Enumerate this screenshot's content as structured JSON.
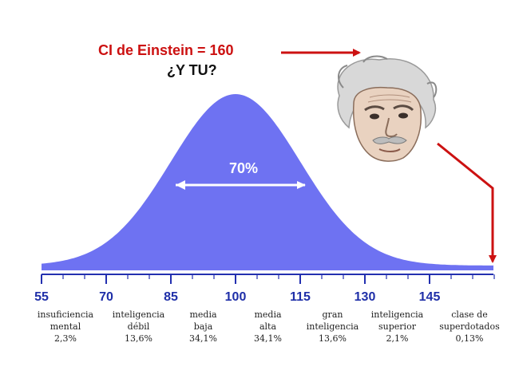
{
  "headline": "CI de Einstein = 160",
  "question": "¿Y TU?",
  "colors": {
    "curve": "#6e72f2",
    "axis": "#2330b0",
    "arrow": "#cc1111",
    "headline": "#cc1111"
  },
  "portrait_icon": "einstein-face",
  "chart_data": {
    "type": "area",
    "distribution": "normal",
    "mean": 100,
    "sd": 15,
    "xlim": [
      55,
      160
    ],
    "ticks": [
      "55",
      "70",
      "85",
      "100",
      "115",
      "130",
      "145"
    ],
    "tick_values": [
      55,
      70,
      85,
      100,
      115,
      130,
      145
    ],
    "center_annotation": "70%",
    "center_span": [
      85,
      115
    ],
    "highlight_value": 160,
    "categories": [
      {
        "lines": [
          "insuficiencia",
          "mental"
        ],
        "percent": "2,3%"
      },
      {
        "lines": [
          "inteligencia",
          "débil"
        ],
        "percent": "13,6%"
      },
      {
        "lines": [
          "media",
          "baja"
        ],
        "percent": "34,1%"
      },
      {
        "lines": [
          "media",
          "alta"
        ],
        "percent": "34,1%"
      },
      {
        "lines": [
          "gran",
          "inteligencia"
        ],
        "percent": "13,6%"
      },
      {
        "lines": [
          "inteligencia",
          "superior"
        ],
        "percent": "2,1%"
      },
      {
        "lines": [
          "clase de",
          "superdotados"
        ],
        "percent": "0,13%"
      }
    ]
  }
}
